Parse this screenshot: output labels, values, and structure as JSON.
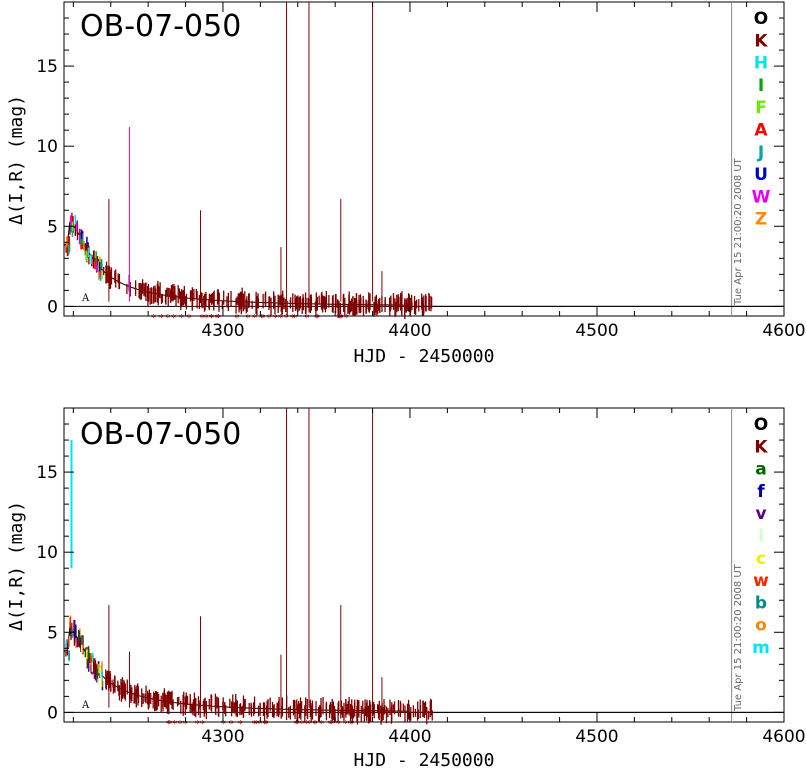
{
  "chart_data": [
    {
      "type": "scatter",
      "title": "OB-07-050",
      "xlabel": "HJD - 2450000",
      "ylabel": "Δ(I,R) (mag)",
      "xlim": [
        4215,
        4600
      ],
      "ylim": [
        -0.6,
        19
      ],
      "xticks": [
        4300,
        4400,
        4500,
        4600
      ],
      "yticks": [
        0,
        5,
        10,
        15
      ],
      "grid": false,
      "legend_position": "right",
      "legend": [
        {
          "label": "O",
          "color": "#000000"
        },
        {
          "label": "K",
          "color": "#800000"
        },
        {
          "label": "H",
          "color": "#00e5ee"
        },
        {
          "label": "I",
          "color": "#00aa00"
        },
        {
          "label": "F",
          "color": "#66ee00"
        },
        {
          "label": "A",
          "color": "#ff0000"
        },
        {
          "label": "J",
          "color": "#00aaaa"
        },
        {
          "label": "U",
          "color": "#0000cc"
        },
        {
          "label": "W",
          "color": "#ee00ee"
        },
        {
          "label": "Z",
          "color": "#ff8800"
        }
      ],
      "annotation": "A",
      "timestamp": "Tue Apr 15 21:00:20 2008 UT",
      "vline_x": 4572,
      "spikes": [
        {
          "x": 4239,
          "y": 6.7
        },
        {
          "x": 4250,
          "y": 11.2
        },
        {
          "x": 4288,
          "y": 6.0
        },
        {
          "x": 4331,
          "y": 3.7
        },
        {
          "x": 4334,
          "y": 19
        },
        {
          "x": 4346,
          "y": 19
        },
        {
          "x": 4363,
          "y": 6.7
        },
        {
          "x": 4380,
          "y": 19
        },
        {
          "x": 4385,
          "y": 2.2
        }
      ]
    },
    {
      "type": "scatter",
      "title": "OB-07-050",
      "xlabel": "HJD - 2450000",
      "ylabel": "Δ(I,R) (mag)",
      "xlim": [
        4215,
        4600
      ],
      "ylim": [
        -0.6,
        19
      ],
      "xticks": [
        4300,
        4400,
        4500,
        4600
      ],
      "yticks": [
        0,
        5,
        10,
        15
      ],
      "grid": false,
      "legend_position": "right",
      "legend": [
        {
          "label": "O",
          "color": "#000000"
        },
        {
          "label": "K",
          "color": "#800000"
        },
        {
          "label": "a",
          "color": "#006400"
        },
        {
          "label": "f",
          "color": "#0000aa"
        },
        {
          "label": "v",
          "color": "#5a008c"
        },
        {
          "label": "l",
          "color": "#ccffcc"
        },
        {
          "label": "c",
          "color": "#eeee00"
        },
        {
          "label": "w",
          "color": "#ff2200"
        },
        {
          "label": "b",
          "color": "#008b8b"
        },
        {
          "label": "o",
          "color": "#ff8800"
        },
        {
          "label": "m",
          "color": "#00e5ee"
        }
      ],
      "annotation": "A",
      "timestamp": "Tue Apr 15 21:00:20 2008 UT",
      "vline_x": 4572,
      "spikes": [
        {
          "x": 4239,
          "y": 6.7
        },
        {
          "x": 4250,
          "y": 3.8
        },
        {
          "x": 4288,
          "y": 6.0
        },
        {
          "x": 4331,
          "y": 3.6
        },
        {
          "x": 4334,
          "y": 19
        },
        {
          "x": 4346,
          "y": 19
        },
        {
          "x": 4363,
          "y": 6.7
        },
        {
          "x": 4380,
          "y": 19
        },
        {
          "x": 4385,
          "y": 2.2
        }
      ]
    }
  ]
}
